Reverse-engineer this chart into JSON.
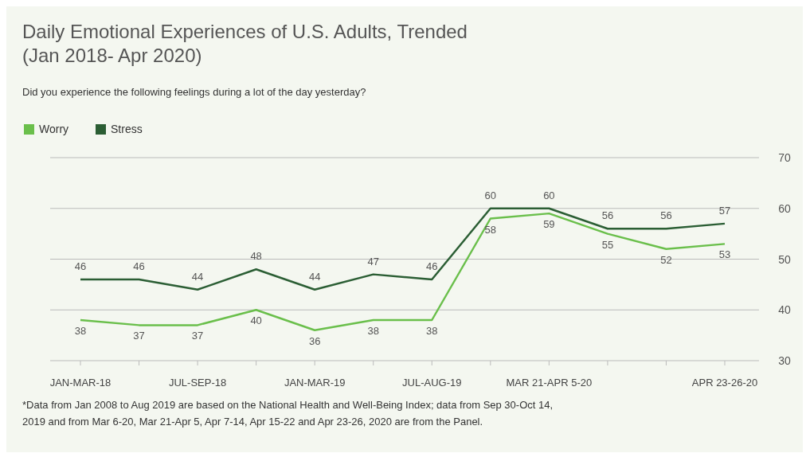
{
  "chart_data": {
    "type": "line",
    "title": "Daily Emotional Experiences of U.S. Adults, Trended (Jan 2018- Apr 2020)",
    "subtitle": "Did you experience the following feelings during a lot of the day yesterday?",
    "categories": [
      "JAN-MAR-18",
      null,
      "JUL-SEP-18",
      null,
      "JAN-MAR-19",
      null,
      "JUL-AUG-19",
      null,
      "MAR 21-APR 5-20",
      null,
      null,
      "APR 23-26-20"
    ],
    "series": [
      {
        "name": "Worry",
        "color": "#6abf4b",
        "values": [
          38,
          37,
          37,
          40,
          36,
          38,
          38,
          58,
          59,
          55,
          52,
          53
        ]
      },
      {
        "name": "Stress",
        "color": "#2b5e34",
        "values": [
          46,
          46,
          44,
          48,
          44,
          47,
          46,
          60,
          60,
          56,
          56,
          57
        ]
      }
    ],
    "ylim": [
      30,
      70
    ],
    "yticks": [
      30,
      40,
      50,
      60,
      70
    ],
    "grid": "y",
    "legend": "top left",
    "data_labels": true,
    "annotations": [
      "*Data from Jan 2008 to Aug 2019 are based on the National Health and Well-Being Index; data from Sep 30-Oct 14, 2019 and from Mar 6-20, Mar 21-Apr 5, Apr 7-14, Apr 15-22 and Apr 23-26, 2020 are from the Panel."
    ]
  }
}
